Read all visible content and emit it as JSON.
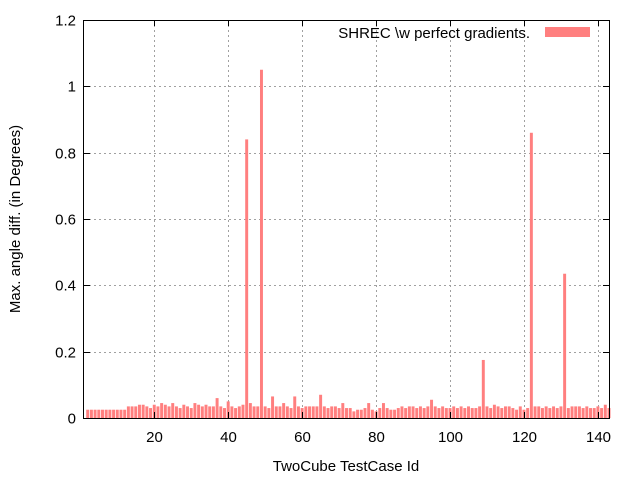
{
  "chart_data": {
    "type": "bar",
    "xlabel": "TwoCube TestCase Id",
    "ylabel": "Max. angle diff. (in Degrees)",
    "xlim": [
      1,
      143
    ],
    "ylim": [
      0,
      1.2
    ],
    "x_ticks": [
      20,
      40,
      60,
      80,
      100,
      120,
      140
    ],
    "y_ticks": [
      0,
      0.2,
      0.4,
      0.6,
      0.8,
      1,
      1.2
    ],
    "y_tick_labels": [
      "0",
      "0.2",
      "0.4",
      "0.6",
      "0.8",
      "1",
      "1.2"
    ],
    "grid": true,
    "legend_position": "top-right",
    "series": [
      {
        "name": "SHREC \\w perfect gradients.",
        "color": "#ff7f7f",
        "x": [
          2,
          3,
          4,
          5,
          6,
          7,
          8,
          9,
          10,
          11,
          12,
          13,
          14,
          15,
          16,
          17,
          18,
          19,
          20,
          21,
          22,
          23,
          24,
          25,
          26,
          27,
          28,
          29,
          30,
          31,
          32,
          33,
          34,
          35,
          36,
          37,
          38,
          39,
          40,
          41,
          42,
          43,
          44,
          45,
          46,
          47,
          48,
          49,
          50,
          51,
          52,
          53,
          54,
          55,
          56,
          57,
          58,
          59,
          60,
          61,
          62,
          63,
          64,
          65,
          66,
          67,
          68,
          69,
          70,
          71,
          72,
          73,
          74,
          75,
          76,
          77,
          78,
          79,
          80,
          81,
          82,
          83,
          84,
          85,
          86,
          87,
          88,
          89,
          90,
          91,
          92,
          93,
          94,
          95,
          96,
          97,
          98,
          99,
          100,
          101,
          102,
          103,
          104,
          105,
          106,
          107,
          108,
          109,
          110,
          111,
          112,
          113,
          114,
          115,
          116,
          117,
          118,
          119,
          120,
          121,
          122,
          123,
          124,
          125,
          126,
          127,
          128,
          129,
          130,
          131,
          132,
          133,
          134,
          135,
          136,
          137,
          138,
          139,
          140,
          141,
          142,
          143
        ],
        "values": [
          0.025,
          0.025,
          0.025,
          0.025,
          0.025,
          0.025,
          0.025,
          0.025,
          0.025,
          0.025,
          0.025,
          0.035,
          0.035,
          0.035,
          0.04,
          0.04,
          0.035,
          0.03,
          0.04,
          0.035,
          0.045,
          0.04,
          0.035,
          0.045,
          0.035,
          0.03,
          0.04,
          0.035,
          0.03,
          0.045,
          0.04,
          0.035,
          0.04,
          0.035,
          0.035,
          0.06,
          0.035,
          0.03,
          0.05,
          0.035,
          0.03,
          0.035,
          0.04,
          0.84,
          0.045,
          0.035,
          0.035,
          1.05,
          0.035,
          0.03,
          0.065,
          0.035,
          0.035,
          0.045,
          0.035,
          0.03,
          0.065,
          0.035,
          0.03,
          0.035,
          0.035,
          0.035,
          0.035,
          0.07,
          0.035,
          0.03,
          0.035,
          0.035,
          0.03,
          0.045,
          0.03,
          0.03,
          0.02,
          0.025,
          0.025,
          0.03,
          0.045,
          0.025,
          0.02,
          0.03,
          0.045,
          0.03,
          0.025,
          0.025,
          0.03,
          0.035,
          0.03,
          0.035,
          0.035,
          0.03,
          0.035,
          0.03,
          0.035,
          0.055,
          0.035,
          0.03,
          0.035,
          0.03,
          0.03,
          0.035,
          0.03,
          0.035,
          0.03,
          0.035,
          0.03,
          0.03,
          0.035,
          0.175,
          0.035,
          0.03,
          0.04,
          0.035,
          0.03,
          0.035,
          0.035,
          0.03,
          0.025,
          0.035,
          0.025,
          0.03,
          0.86,
          0.035,
          0.035,
          0.03,
          0.035,
          0.03,
          0.035,
          0.03,
          0.035,
          0.435,
          0.03,
          0.035,
          0.035,
          0.035,
          0.03,
          0.035,
          0.03,
          0.03,
          0.035,
          0.03,
          0.04,
          0.03
        ]
      }
    ]
  }
}
